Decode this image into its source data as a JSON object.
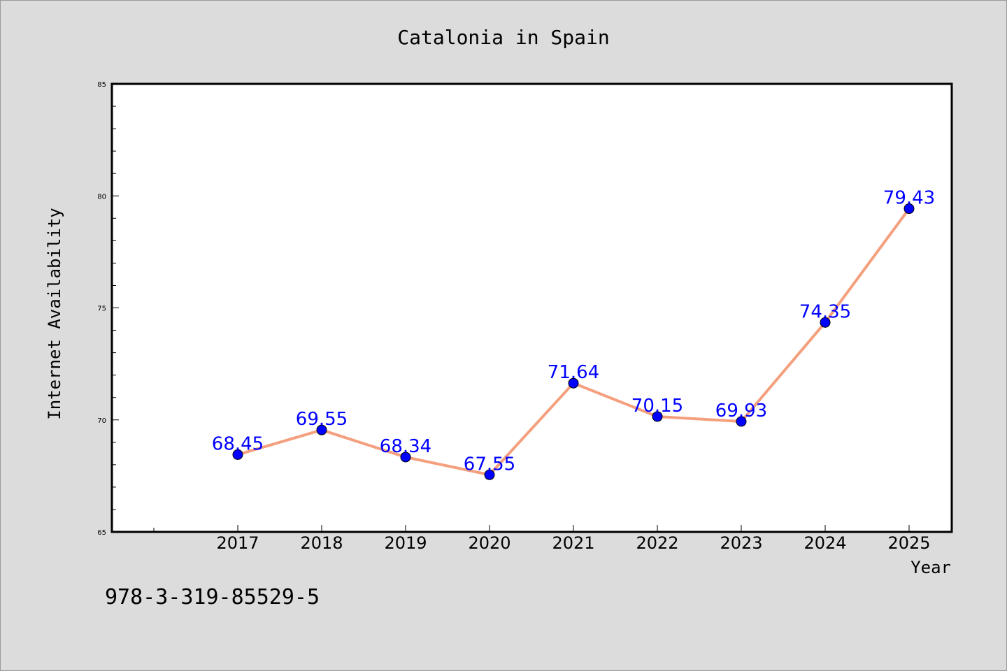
{
  "chart_data": {
    "type": "line",
    "title": "Catalonia in Spain",
    "xlabel": "Year",
    "ylabel": "Internet Availability",
    "x": [
      "2017",
      "2018",
      "2019",
      "2020",
      "2021",
      "2022",
      "2023",
      "2024",
      "2025"
    ],
    "series": [
      {
        "values": [
          68.45,
          69.55,
          68.34,
          67.55,
          71.64,
          70.15,
          69.93,
          74.35,
          79.43
        ]
      }
    ],
    "data_labels": [
      "68.45",
      "69.55",
      "68.34",
      "67.55",
      "71.64",
      "70.15",
      "69.93",
      "74.35",
      "79.43"
    ],
    "ylim": [
      65,
      85
    ],
    "yticks": [
      "65",
      "70",
      "75",
      "80",
      "85"
    ],
    "grid": false,
    "line_color": "#f4a07e",
    "marker_color": "#0000ff",
    "label_color": "#0000ff"
  },
  "footer": {
    "isbn": "978-3-319-85529-5"
  }
}
